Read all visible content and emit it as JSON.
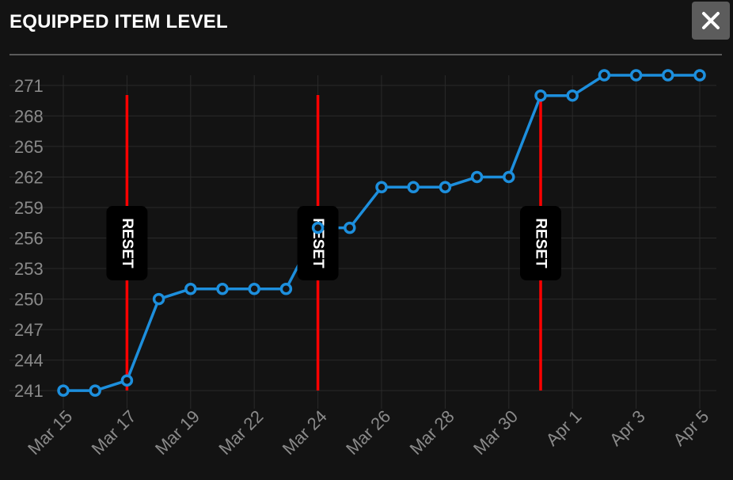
{
  "header": {
    "title": "EQUIPPED ITEM LEVEL",
    "close_label": "✕"
  },
  "colors": {
    "line": "#1d8fdd",
    "reset": "#ff0000",
    "axis_text": "#8a8a8a",
    "grid": "#2a2a2a"
  },
  "chart_data": {
    "type": "line",
    "title": "EQUIPPED ITEM LEVEL",
    "xlabel": "",
    "ylabel": "",
    "ylim": [
      240,
      272
    ],
    "yticks": [
      241,
      244,
      247,
      250,
      253,
      256,
      259,
      262,
      265,
      268,
      271
    ],
    "x_ticks": [
      "Mar 15",
      "Mar 17",
      "Mar 19",
      "Mar 22",
      "Mar 24",
      "Mar 26",
      "Mar 28",
      "Mar 30",
      "Apr 1",
      "Apr 3",
      "Apr 5"
    ],
    "grid": true,
    "series": [
      {
        "values": [
          241,
          241,
          242,
          250,
          251,
          251,
          251,
          251,
          257,
          257,
          261,
          261,
          261,
          262,
          262,
          270,
          270,
          272,
          272,
          272,
          272
        ]
      }
    ],
    "resets": [
      {
        "after_point": 2,
        "label": "RESET"
      },
      {
        "after_point": 8,
        "label": "RESET"
      },
      {
        "after_point": 15,
        "label": "RESET"
      }
    ]
  }
}
